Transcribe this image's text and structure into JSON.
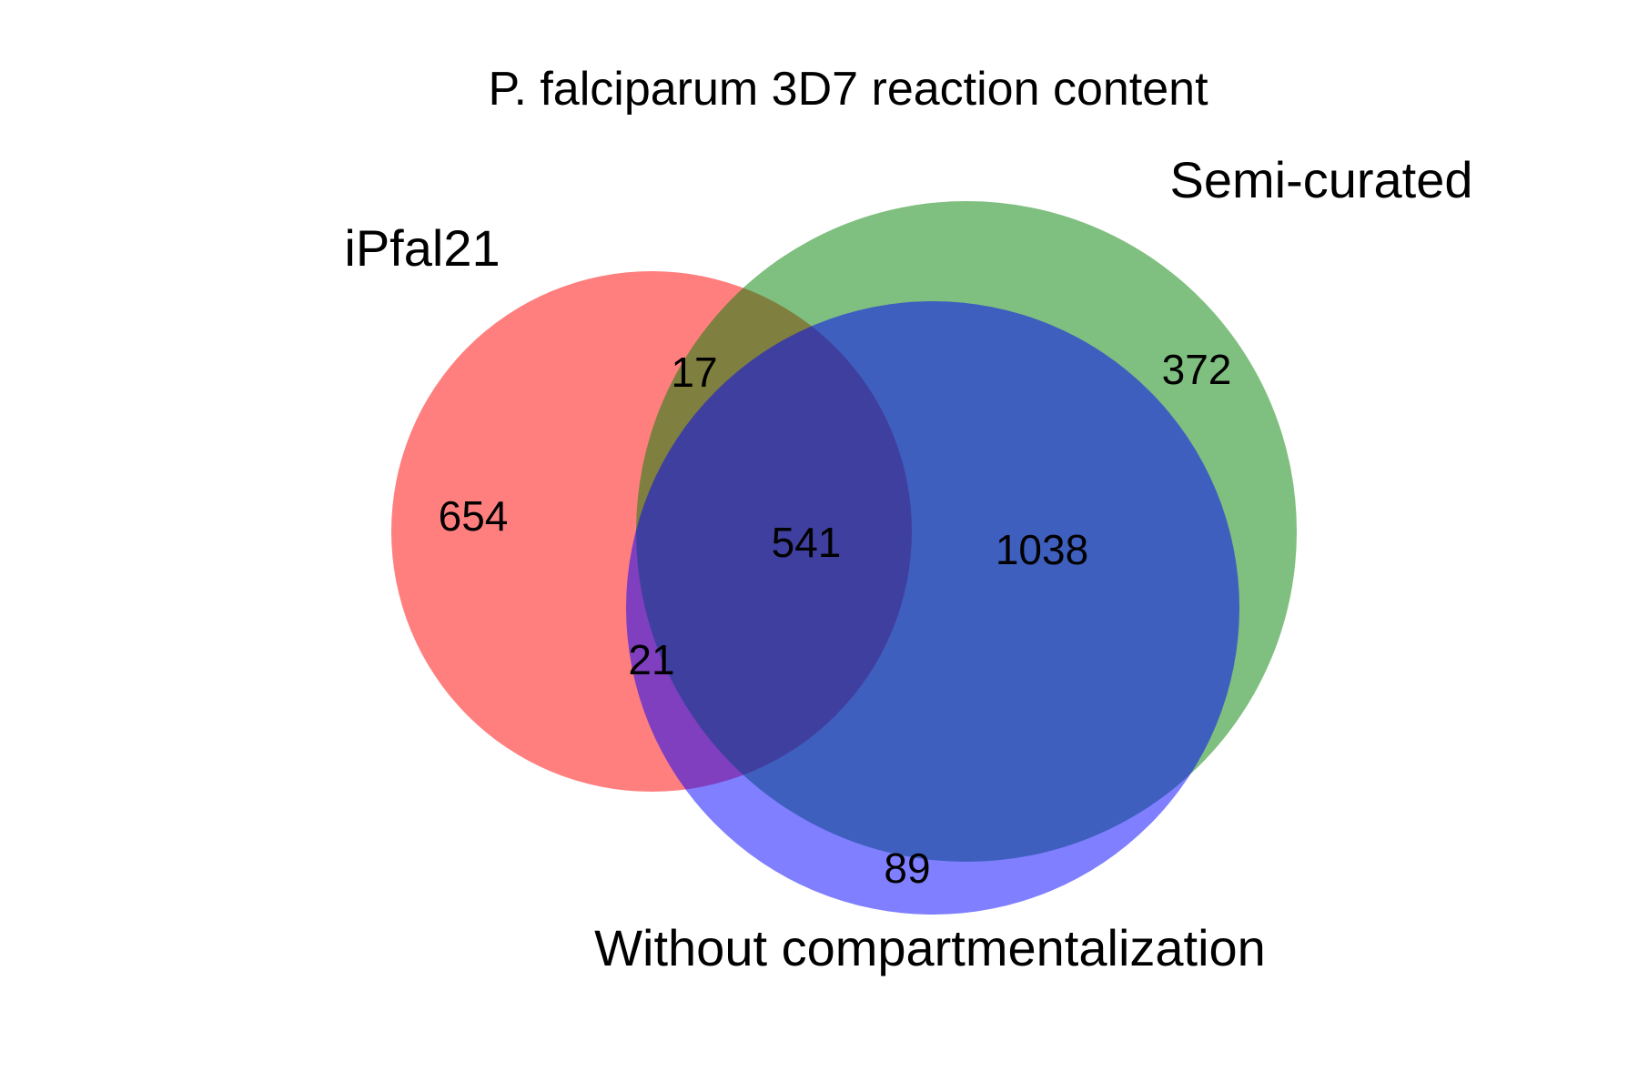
{
  "title": "P. falciparum 3D7 reaction content",
  "colors": {
    "set_a": "#ff0000",
    "set_b": "#008000",
    "set_c": "#0000ff",
    "ab_overlap": "#d2a97e",
    "ac_overlap": "#d77edc",
    "bc_overlap": "#82acd8",
    "abc_overlap": "#b09ab0",
    "fill_opacity": 0.5
  },
  "sets": [
    {
      "name": "iPfal21",
      "color": "#ff0000"
    },
    {
      "name": "Semi-curated",
      "color": "#008000"
    },
    {
      "name": "Without compartmentalization",
      "color": "#0000ff"
    }
  ],
  "regions": {
    "only_ipfal21": "654",
    "ipfal21_and_semicurated": "17",
    "ipfal21_and_without": "21",
    "all_three": "541",
    "semicurated_and_without": "1038",
    "only_semicurated": "372",
    "only_without": "89"
  }
}
